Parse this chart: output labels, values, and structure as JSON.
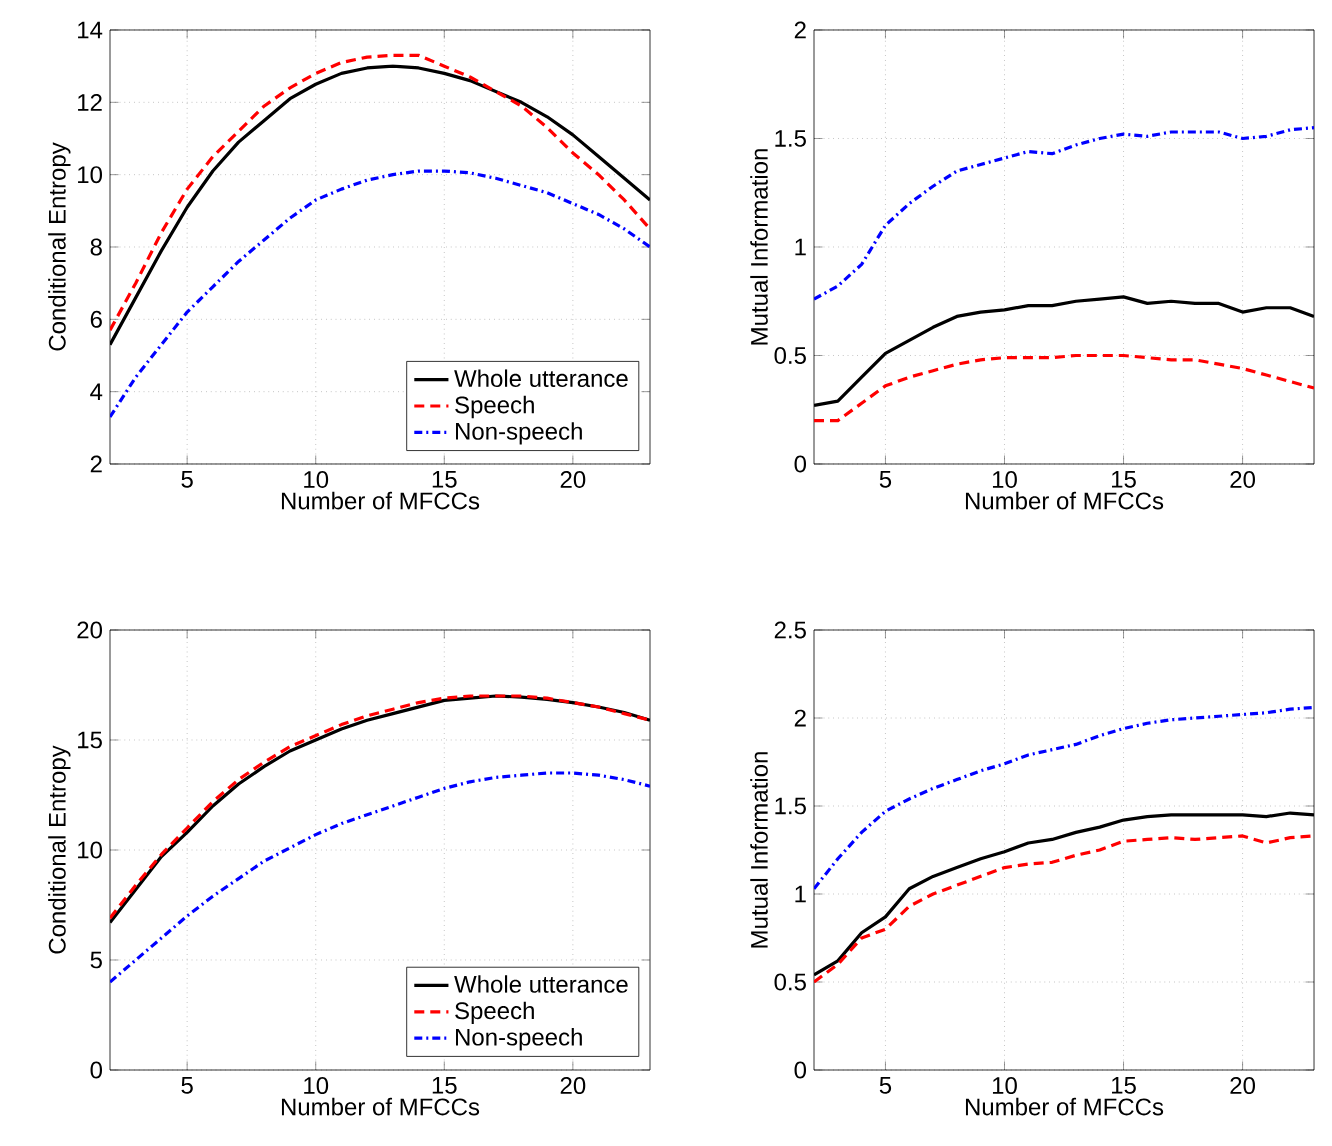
{
  "chart_data": [
    {
      "type": "line",
      "xlabel": "Number of MFCCs",
      "ylabel": "Conditional Entropy",
      "x": [
        2,
        3,
        4,
        5,
        6,
        7,
        8,
        9,
        10,
        11,
        12,
        13,
        14,
        15,
        16,
        17,
        18,
        19,
        20,
        21,
        22,
        23
      ],
      "xlim": [
        2,
        23
      ],
      "ylim": [
        2,
        14
      ],
      "xticks": [
        5,
        10,
        15,
        20
      ],
      "yticks": [
        2,
        4,
        6,
        8,
        10,
        12,
        14
      ],
      "grid": true,
      "legend": "bottom right",
      "marker": "none",
      "series": [
        {
          "name": "Whole utterance",
          "color": "#000000",
          "line_style": "solid",
          "values": [
            5.3,
            6.6,
            7.9,
            9.1,
            10.1,
            10.9,
            11.5,
            12.1,
            12.5,
            12.8,
            12.95,
            13.0,
            12.95,
            12.8,
            12.6,
            12.3,
            12.0,
            11.6,
            11.1,
            10.5,
            9.9,
            9.3
          ]
        },
        {
          "name": "Speech",
          "color": "#ff0000",
          "line_style": "dashed",
          "values": [
            5.7,
            7.0,
            8.4,
            9.6,
            10.5,
            11.2,
            11.9,
            12.4,
            12.8,
            13.1,
            13.25,
            13.3,
            13.3,
            13.0,
            12.7,
            12.3,
            11.9,
            11.3,
            10.6,
            10.0,
            9.3,
            8.5
          ]
        },
        {
          "name": "Non-speech",
          "color": "#0000ff",
          "line_style": "dashdotted",
          "values": [
            3.3,
            4.4,
            5.3,
            6.2,
            6.9,
            7.6,
            8.2,
            8.8,
            9.3,
            9.6,
            9.85,
            10.0,
            10.1,
            10.1,
            10.05,
            9.9,
            9.7,
            9.5,
            9.2,
            8.9,
            8.5,
            8.0
          ]
        }
      ]
    },
    {
      "type": "line",
      "xlabel": "Number of MFCCs",
      "ylabel": "Mutual Information",
      "x": [
        2,
        3,
        4,
        5,
        6,
        7,
        8,
        9,
        10,
        11,
        12,
        13,
        14,
        15,
        16,
        17,
        18,
        19,
        20,
        21,
        22,
        23
      ],
      "xlim": [
        2,
        23
      ],
      "ylim": [
        0,
        2
      ],
      "xticks": [
        5,
        10,
        15,
        20
      ],
      "yticks": [
        0,
        {
          "value": 0.5,
          "label": "0.5"
        },
        1,
        {
          "value": 1.5,
          "label": "1.5"
        },
        2
      ],
      "grid": true,
      "marker": "none",
      "series": [
        {
          "color": "#000000",
          "line_style": "solid",
          "values": [
            0.27,
            0.29,
            0.4,
            0.51,
            0.57,
            0.63,
            0.68,
            0.7,
            0.71,
            0.73,
            0.73,
            0.75,
            0.76,
            0.77,
            0.74,
            0.75,
            0.74,
            0.74,
            0.7,
            0.72,
            0.72,
            0.68
          ]
        },
        {
          "color": "#ff0000",
          "line_style": "dashed",
          "values": [
            0.2,
            0.2,
            0.28,
            0.36,
            0.4,
            0.43,
            0.46,
            0.48,
            0.49,
            0.49,
            0.49,
            0.5,
            0.5,
            0.5,
            0.49,
            0.48,
            0.48,
            0.46,
            0.44,
            0.41,
            0.38,
            0.35
          ]
        },
        {
          "color": "#0000ff",
          "line_style": "dashdotted",
          "values": [
            0.76,
            0.82,
            0.92,
            1.1,
            1.2,
            1.28,
            1.35,
            1.38,
            1.41,
            1.44,
            1.43,
            1.47,
            1.5,
            1.52,
            1.51,
            1.53,
            1.53,
            1.53,
            1.5,
            1.51,
            1.54,
            1.55
          ]
        }
      ]
    },
    {
      "type": "line",
      "xlabel": "Number of MFCCs",
      "ylabel": "Conditional Entropy",
      "x": [
        2,
        3,
        4,
        5,
        6,
        7,
        8,
        9,
        10,
        11,
        12,
        13,
        14,
        15,
        16,
        17,
        18,
        19,
        20,
        21,
        22,
        23
      ],
      "xlim": [
        2,
        23
      ],
      "ylim": [
        0,
        20
      ],
      "xticks": [
        5,
        10,
        15,
        20
      ],
      "yticks": [
        0,
        5,
        10,
        15,
        20
      ],
      "grid": true,
      "legend": "bottom right",
      "marker": "none",
      "series": [
        {
          "name": "Whole utterance",
          "color": "#000000",
          "line_style": "solid",
          "values": [
            6.7,
            8.2,
            9.7,
            10.8,
            12.0,
            13.0,
            13.8,
            14.5,
            15.0,
            15.5,
            15.9,
            16.2,
            16.5,
            16.8,
            16.9,
            17.0,
            16.95,
            16.85,
            16.7,
            16.5,
            16.25,
            15.9
          ]
        },
        {
          "name": "Speech",
          "color": "#ff0000",
          "line_style": "dashed",
          "values": [
            6.9,
            8.4,
            9.8,
            11.0,
            12.2,
            13.2,
            14.0,
            14.7,
            15.2,
            15.7,
            16.1,
            16.4,
            16.7,
            16.9,
            17.0,
            17.0,
            17.0,
            16.9,
            16.7,
            16.5,
            16.2,
            15.9
          ]
        },
        {
          "name": "Non-speech",
          "color": "#0000ff",
          "line_style": "dashdotted",
          "values": [
            4.0,
            5.0,
            6.0,
            7.0,
            7.9,
            8.7,
            9.5,
            10.1,
            10.7,
            11.2,
            11.6,
            12.0,
            12.4,
            12.8,
            13.1,
            13.3,
            13.4,
            13.5,
            13.5,
            13.4,
            13.2,
            12.9
          ]
        }
      ]
    },
    {
      "type": "line",
      "xlabel": "Number of MFCCs",
      "ylabel": "Mutual Information",
      "x": [
        2,
        3,
        4,
        5,
        6,
        7,
        8,
        9,
        10,
        11,
        12,
        13,
        14,
        15,
        16,
        17,
        18,
        19,
        20,
        21,
        22,
        23
      ],
      "xlim": [
        2,
        23
      ],
      "ylim": [
        0,
        2.5
      ],
      "xticks": [
        5,
        10,
        15,
        20
      ],
      "yticks": [
        0,
        {
          "value": 0.5,
          "label": "0.5"
        },
        1,
        {
          "value": 1.5,
          "label": "1.5"
        },
        2,
        {
          "value": 2.5,
          "label": "2.5"
        }
      ],
      "grid": true,
      "marker": "none",
      "series": [
        {
          "color": "#000000",
          "line_style": "solid",
          "values": [
            0.54,
            0.62,
            0.78,
            0.87,
            1.03,
            1.1,
            1.15,
            1.2,
            1.24,
            1.29,
            1.31,
            1.35,
            1.38,
            1.42,
            1.44,
            1.45,
            1.45,
            1.45,
            1.45,
            1.44,
            1.46,
            1.45
          ]
        },
        {
          "color": "#ff0000",
          "line_style": "dashed",
          "values": [
            0.5,
            0.6,
            0.75,
            0.8,
            0.93,
            1.0,
            1.05,
            1.1,
            1.15,
            1.17,
            1.18,
            1.22,
            1.25,
            1.3,
            1.31,
            1.32,
            1.31,
            1.32,
            1.33,
            1.29,
            1.32,
            1.33
          ]
        },
        {
          "color": "#0000ff",
          "line_style": "dashdotted",
          "values": [
            1.03,
            1.2,
            1.35,
            1.47,
            1.54,
            1.6,
            1.65,
            1.7,
            1.74,
            1.79,
            1.82,
            1.85,
            1.9,
            1.94,
            1.97,
            1.99,
            2.0,
            2.01,
            2.02,
            2.03,
            2.05,
            2.06
          ]
        }
      ]
    }
  ]
}
